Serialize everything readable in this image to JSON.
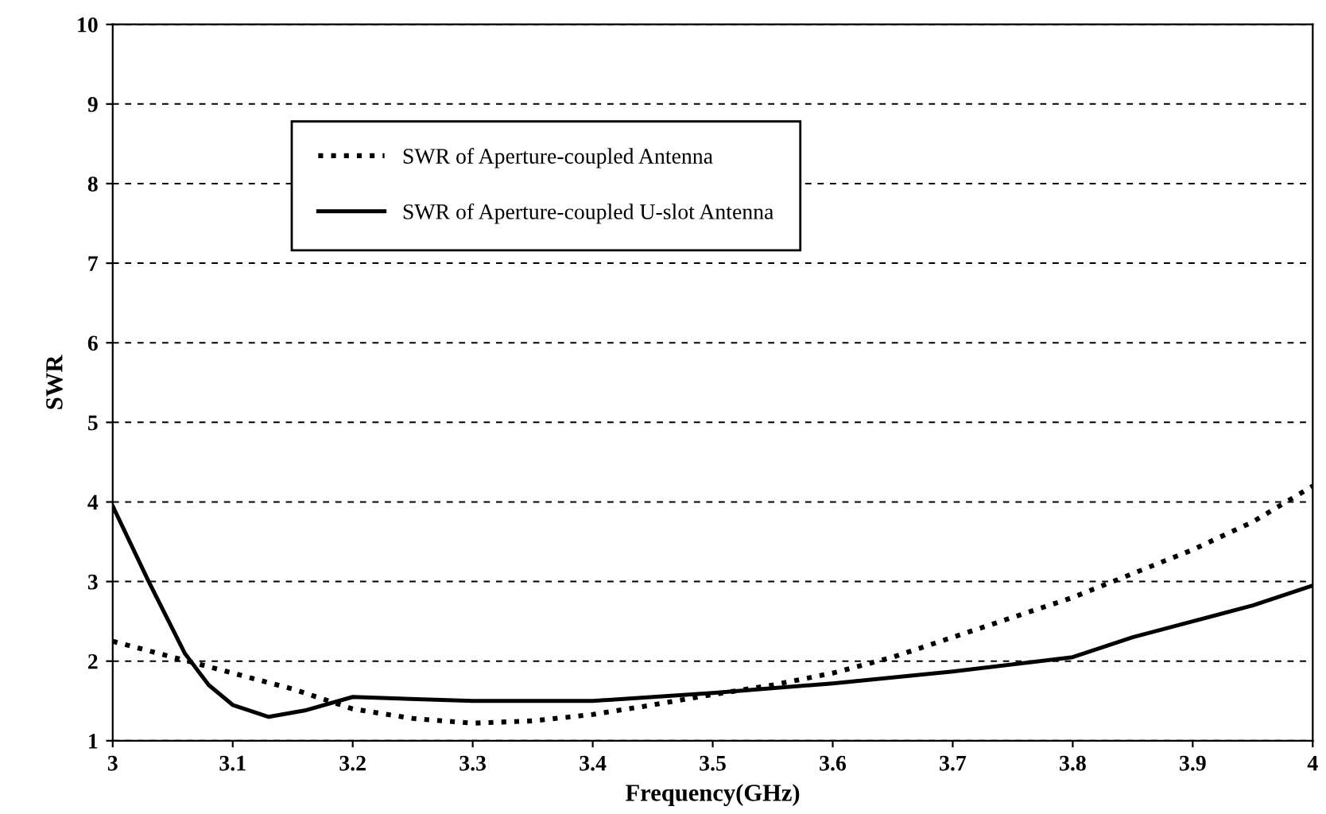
{
  "chart_data": {
    "type": "line",
    "xlabel": "Frequency(GHz)",
    "ylabel": "SWR",
    "xlim": [
      3,
      4
    ],
    "ylim": [
      1,
      10
    ],
    "xticks": [
      3,
      3.1,
      3.2,
      3.3,
      3.4,
      3.5,
      3.6,
      3.7,
      3.8,
      3.9,
      4
    ],
    "yticks": [
      1,
      2,
      3,
      4,
      5,
      6,
      7,
      8,
      9,
      10
    ],
    "grid": "y",
    "legend": "top left",
    "series": [
      {
        "name": "SWR of Aperture-coupled Antenna",
        "color": "#000000",
        "line_style": "dotted",
        "x": [
          3.0,
          3.05,
          3.1,
          3.15,
          3.2,
          3.25,
          3.3,
          3.35,
          3.4,
          3.45,
          3.5,
          3.55,
          3.6,
          3.65,
          3.7,
          3.75,
          3.8,
          3.85,
          3.9,
          3.95,
          4.0
        ],
        "values": [
          2.25,
          2.05,
          1.85,
          1.65,
          1.4,
          1.28,
          1.22,
          1.25,
          1.33,
          1.45,
          1.58,
          1.7,
          1.85,
          2.05,
          2.3,
          2.55,
          2.8,
          3.1,
          3.4,
          3.75,
          4.2
        ]
      },
      {
        "name": "SWR of Aperture-coupled U-slot Antenna",
        "color": "#000000",
        "line_style": "solid",
        "x": [
          3.0,
          3.03,
          3.06,
          3.08,
          3.1,
          3.13,
          3.16,
          3.2,
          3.3,
          3.4,
          3.5,
          3.6,
          3.7,
          3.8,
          3.85,
          3.9,
          3.95,
          4.0
        ],
        "values": [
          3.95,
          3.0,
          2.1,
          1.7,
          1.45,
          1.3,
          1.38,
          1.55,
          1.5,
          1.5,
          1.6,
          1.72,
          1.87,
          2.05,
          2.3,
          2.5,
          2.7,
          2.95
        ]
      }
    ]
  }
}
